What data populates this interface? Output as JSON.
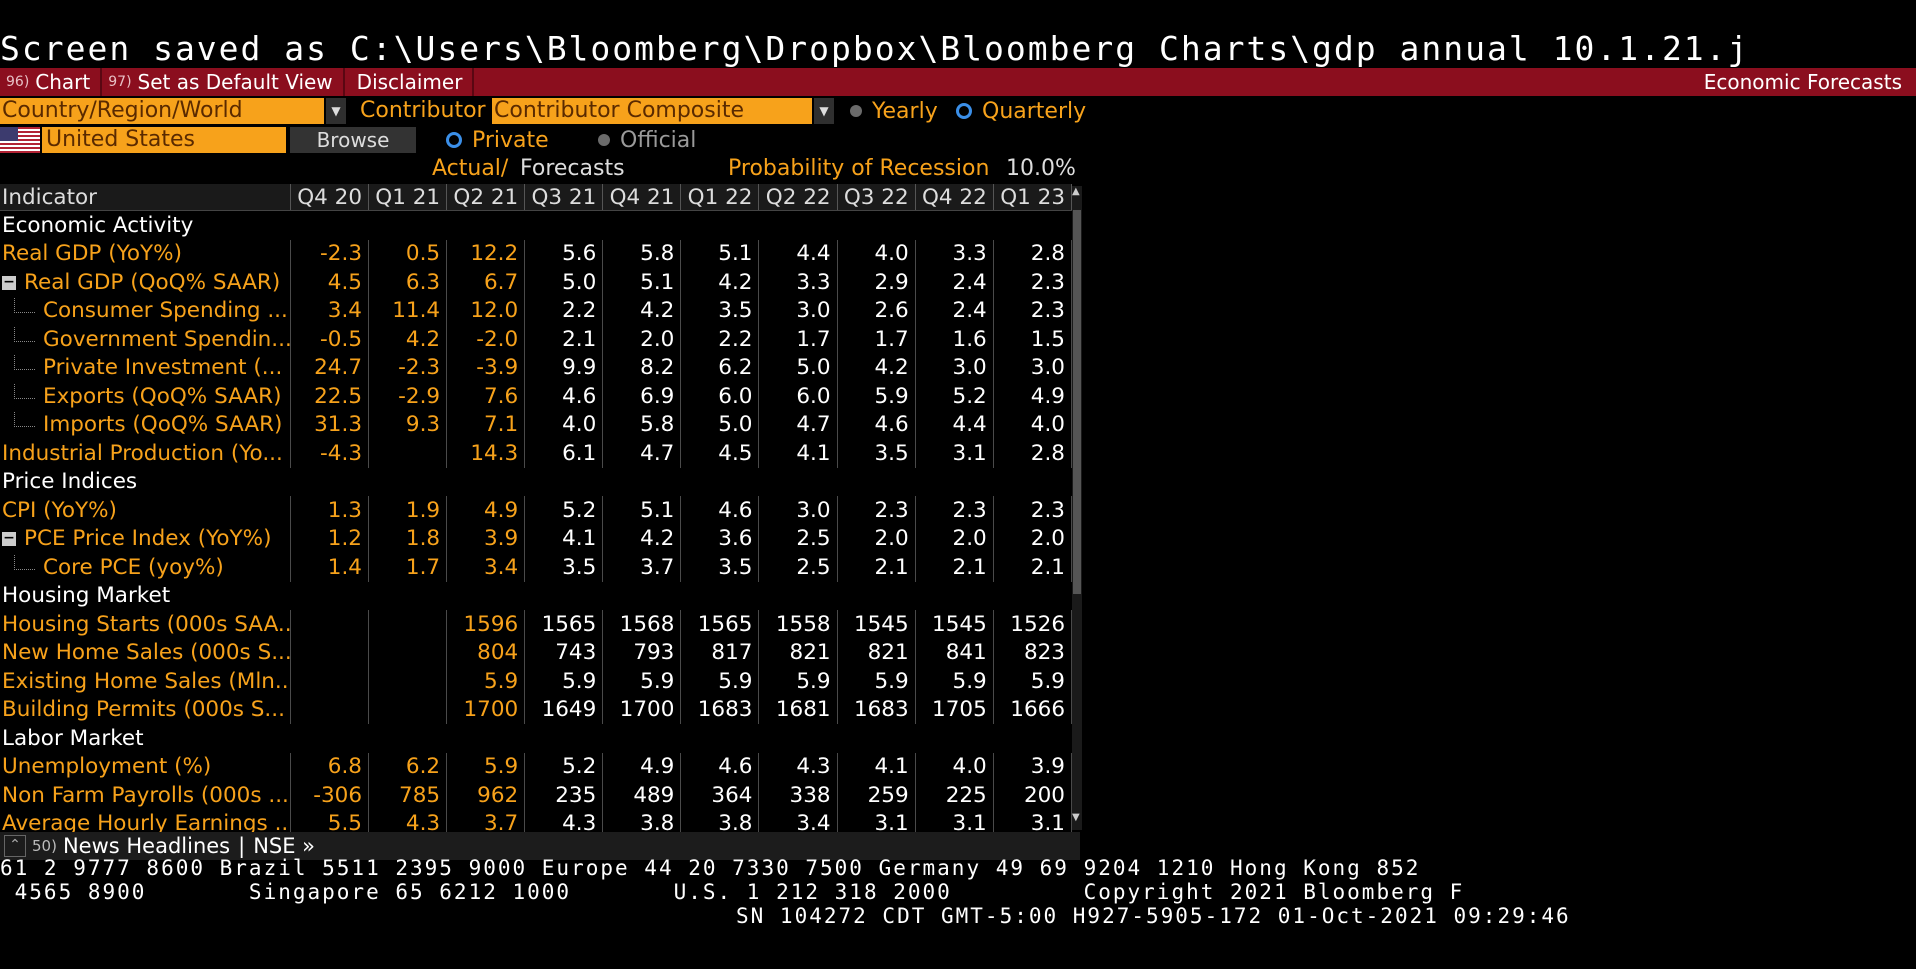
{
  "screen_title": "Screen saved as C:\\Users\\Bloomberg\\Dropbox\\Bloomberg Charts\\gdp annual 10.1.21.j",
  "toolbar": {
    "chart_num": "96)",
    "chart_label": "Chart",
    "default_num": "97)",
    "default_label": "Set as Default View",
    "disclaimer_label": "Disclaimer",
    "right_label": "Economic Forecasts"
  },
  "filters": {
    "region_value": "Country/Region/World",
    "contributor_label": "Contributor",
    "contributor_value": "Contributor Composite",
    "yearly_label": "Yearly",
    "quarterly_label": "Quarterly",
    "country_value": "United States",
    "browse_label": "Browse",
    "private_label": "Private",
    "official_label": "Official",
    "actual_label": "Actual/",
    "forecasts_label": "Forecasts",
    "recession_label": "Probability of Recession",
    "recession_value": "10.0%"
  },
  "table": {
    "indicator_header": "Indicator",
    "columns": [
      "Q4 20",
      "Q1 21",
      "Q2 21",
      "Q3 21",
      "Q4 21",
      "Q1 22",
      "Q2 22",
      "Q3 22",
      "Q4 22",
      "Q1 23"
    ],
    "rows": [
      {
        "section": "Economic Activity"
      },
      {
        "name": "Real GDP (YoY%)",
        "values": [
          "-2.3",
          "0.5",
          "12.2",
          "5.6",
          "5.8",
          "5.1",
          "4.4",
          "4.0",
          "3.3",
          "2.8"
        ]
      },
      {
        "name": "Real GDP (QoQ% SAAR)",
        "values": [
          "4.5",
          "6.3",
          "6.7",
          "5.0",
          "5.1",
          "4.2",
          "3.3",
          "2.9",
          "2.4",
          "2.3"
        ],
        "toggle": "−"
      },
      {
        "name": "Consumer Spending ...",
        "values": [
          "3.4",
          "11.4",
          "12.0",
          "2.2",
          "4.2",
          "3.5",
          "3.0",
          "2.6",
          "2.4",
          "2.3"
        ],
        "child": true
      },
      {
        "name": "Government Spendin...",
        "values": [
          "-0.5",
          "4.2",
          "-2.0",
          "2.1",
          "2.0",
          "2.2",
          "1.7",
          "1.7",
          "1.6",
          "1.5"
        ],
        "child": true
      },
      {
        "name": "Private Investment (...",
        "values": [
          "24.7",
          "-2.3",
          "-3.9",
          "9.9",
          "8.2",
          "6.2",
          "5.0",
          "4.2",
          "3.0",
          "3.0"
        ],
        "child": true
      },
      {
        "name": "Exports (QoQ% SAAR)",
        "values": [
          "22.5",
          "-2.9",
          "7.6",
          "4.6",
          "6.9",
          "6.0",
          "6.0",
          "5.9",
          "5.2",
          "4.9"
        ],
        "child": true
      },
      {
        "name": "Imports (QoQ% SAAR)",
        "values": [
          "31.3",
          "9.3",
          "7.1",
          "4.0",
          "5.8",
          "5.0",
          "4.7",
          "4.6",
          "4.4",
          "4.0"
        ],
        "child": true
      },
      {
        "name": "Industrial Production (Yo...",
        "values": [
          "-4.3",
          "",
          "14.3",
          "6.1",
          "4.7",
          "4.5",
          "4.1",
          "3.5",
          "3.1",
          "2.8"
        ]
      },
      {
        "section": "Price Indices"
      },
      {
        "name": "CPI (YoY%)",
        "values": [
          "1.3",
          "1.9",
          "4.9",
          "5.2",
          "5.1",
          "4.6",
          "3.0",
          "2.3",
          "2.3",
          "2.3"
        ]
      },
      {
        "name": "PCE Price Index (YoY%)",
        "values": [
          "1.2",
          "1.8",
          "3.9",
          "4.1",
          "4.2",
          "3.6",
          "2.5",
          "2.0",
          "2.0",
          "2.0"
        ],
        "toggle": "−"
      },
      {
        "name": "Core PCE (yoy%)",
        "values": [
          "1.4",
          "1.7",
          "3.4",
          "3.5",
          "3.7",
          "3.5",
          "2.5",
          "2.1",
          "2.1",
          "2.1"
        ],
        "child": true
      },
      {
        "section": "Housing Market"
      },
      {
        "name": "Housing Starts (000s SAA...",
        "values": [
          "",
          "",
          "1596",
          "1565",
          "1568",
          "1565",
          "1558",
          "1545",
          "1545",
          "1526"
        ]
      },
      {
        "name": "New Home Sales (000s S...",
        "values": [
          "",
          "",
          "804",
          "743",
          "793",
          "817",
          "821",
          "821",
          "841",
          "823"
        ]
      },
      {
        "name": "Existing Home Sales (Mln...",
        "values": [
          "",
          "",
          "5.9",
          "5.9",
          "5.9",
          "5.9",
          "5.9",
          "5.9",
          "5.9",
          "5.9"
        ]
      },
      {
        "name": "Building Permits (000s S...",
        "values": [
          "",
          "",
          "1700",
          "1649",
          "1700",
          "1683",
          "1681",
          "1683",
          "1705",
          "1666"
        ]
      },
      {
        "section": "Labor Market"
      },
      {
        "name": "Unemployment (%)",
        "values": [
          "6.8",
          "6.2",
          "5.9",
          "5.2",
          "4.9",
          "4.6",
          "4.3",
          "4.1",
          "4.0",
          "3.9"
        ]
      },
      {
        "name": "Non Farm Payrolls (000s ...",
        "values": [
          "-306",
          "785",
          "962",
          "235",
          "489",
          "364",
          "338",
          "259",
          "225",
          "200"
        ]
      },
      {
        "name": "Average Hourly Earnings ...",
        "values": [
          "5.5",
          "4.3",
          "3.7",
          "4.3",
          "3.8",
          "3.8",
          "3.4",
          "3.1",
          "3.1",
          "3.1"
        ]
      }
    ]
  },
  "bottom": {
    "num": "50)",
    "news_label": "News Headlines",
    "sep": "|",
    "nse_label": "NSE »"
  },
  "ticker": {
    "line1": "61 2 9777 8600 Brazil 5511 2395 9000 Europe 44 20 7330 7500 Germany 49 69 9204 1210 Hong Kong 852",
    "line2": " 4565 8900       Singapore 65 6212 1000       U.S. 1 212 318 2000         Copyright 2021 Bloomberg F",
    "line3": "SN 104272 CDT  GMT-5:00 H927-5905-172 01-Oct-2021 09:29:46"
  },
  "colors": {
    "orange": "#f7a21b",
    "header_red": "#8b0e1e",
    "radio_blue": "#3b8fe8"
  }
}
